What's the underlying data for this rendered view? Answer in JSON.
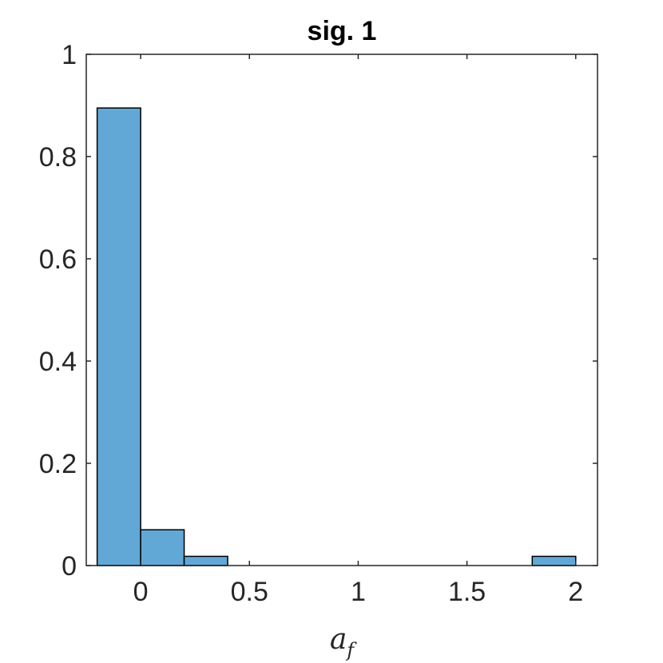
{
  "chart_data": {
    "type": "bar",
    "subtype": "histogram",
    "title": "sig. 1",
    "xlabel_base": "a",
    "xlabel_sub": "f",
    "ylabel": "",
    "xlim": [
      -0.25,
      2.1
    ],
    "ylim": [
      0,
      1
    ],
    "xticks": [
      0,
      0.5,
      1,
      1.5,
      2
    ],
    "xtick_labels": [
      "0",
      "0.5",
      "1",
      "1.5",
      "2"
    ],
    "yticks": [
      0,
      0.2,
      0.4,
      0.6,
      0.8,
      1
    ],
    "ytick_labels": [
      "0",
      "0.2",
      "0.4",
      "0.6",
      "0.8",
      "1"
    ],
    "grid": false,
    "box": true,
    "bars": [
      {
        "x0": -0.2,
        "x1": 0.0,
        "value": 0.895
      },
      {
        "x0": 0.0,
        "x1": 0.2,
        "value": 0.07
      },
      {
        "x0": 0.2,
        "x1": 0.4,
        "value": 0.018
      },
      {
        "x0": 0.4,
        "x1": 0.6,
        "value": 0
      },
      {
        "x0": 0.6,
        "x1": 0.8,
        "value": 0
      },
      {
        "x0": 0.8,
        "x1": 1.0,
        "value": 0
      },
      {
        "x0": 1.0,
        "x1": 1.2,
        "value": 0
      },
      {
        "x0": 1.2,
        "x1": 1.4,
        "value": 0
      },
      {
        "x0": 1.4,
        "x1": 1.6,
        "value": 0
      },
      {
        "x0": 1.6,
        "x1": 1.8,
        "value": 0
      },
      {
        "x0": 1.8,
        "x1": 2.0,
        "value": 0.018
      }
    ],
    "colors": {
      "bar_fill": "#62a8d7",
      "bar_edge": "#000000",
      "axis": "#262626"
    }
  }
}
